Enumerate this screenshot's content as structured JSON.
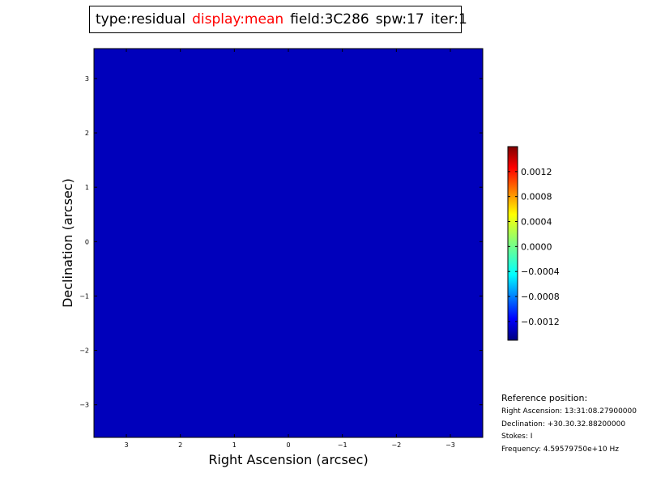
{
  "title_bar": {
    "type": "type:residual",
    "display": "display:mean",
    "field": "field:3C286",
    "spw": "spw:17",
    "iter": "iter:1",
    "highlight_color": "#ff0000"
  },
  "reference": {
    "title": "Reference position:",
    "ra": "Right Ascension: 13:31:08.27900000",
    "dec": "Declination: +30.30.32.88200000",
    "stokes": "Stokes: I",
    "frequency": "Frequency: 4.59579750e+10 Hz"
  },
  "chart_data": {
    "type": "heatmap",
    "xlabel": "Right Ascension (arcsec)",
    "ylabel": "Declination (arcsec)",
    "xlim": [
      3.6,
      -3.6
    ],
    "ylim": [
      -3.6,
      3.55
    ],
    "x_ticks": [
      3,
      2,
      1,
      0,
      -1,
      -2,
      -3
    ],
    "x_tick_labels": [
      "3",
      "2",
      "1",
      "0",
      "−1",
      "−2",
      "−3"
    ],
    "y_ticks": [
      3,
      2,
      1,
      0,
      -1,
      -2,
      -3
    ],
    "y_tick_labels": [
      "3",
      "2",
      "1",
      "0",
      "−1",
      "−2",
      "−3"
    ],
    "colormap": "jet",
    "colorbar": {
      "min": -0.0015,
      "max": 0.0016,
      "ticks": [
        0.0012,
        0.0008,
        0.0004,
        0.0,
        -0.0004,
        -0.0008,
        -0.0012
      ],
      "tick_labels": [
        "0.0012",
        "0.0008",
        "0.0004",
        "0.0000",
        "−0.0004",
        "−0.0008",
        "−0.0012"
      ]
    },
    "grid": false
  }
}
